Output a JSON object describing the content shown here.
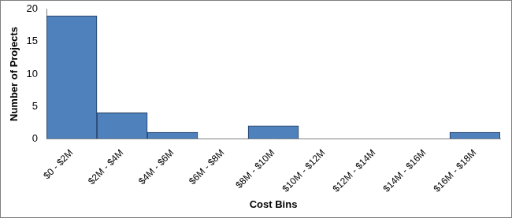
{
  "chart_data": {
    "type": "bar",
    "x_label": "Cost Bins",
    "y_label": "Number of Projects",
    "categories": [
      "$0 - $2M",
      "$2M - $4M",
      "$4M - $6M",
      "$6M - $8M",
      "$8M - $10M",
      "$10M - $12M",
      "$12M - $14M",
      "$14M - $16M",
      "$16M - $18M"
    ],
    "values": [
      19,
      4,
      1,
      0,
      2,
      0,
      0,
      0,
      1
    ],
    "color": "#4f81bd",
    "ylim": [
      0,
      20
    ],
    "yticks": [
      0,
      5,
      10,
      15,
      20
    ],
    "grid": false,
    "legend": false
  }
}
